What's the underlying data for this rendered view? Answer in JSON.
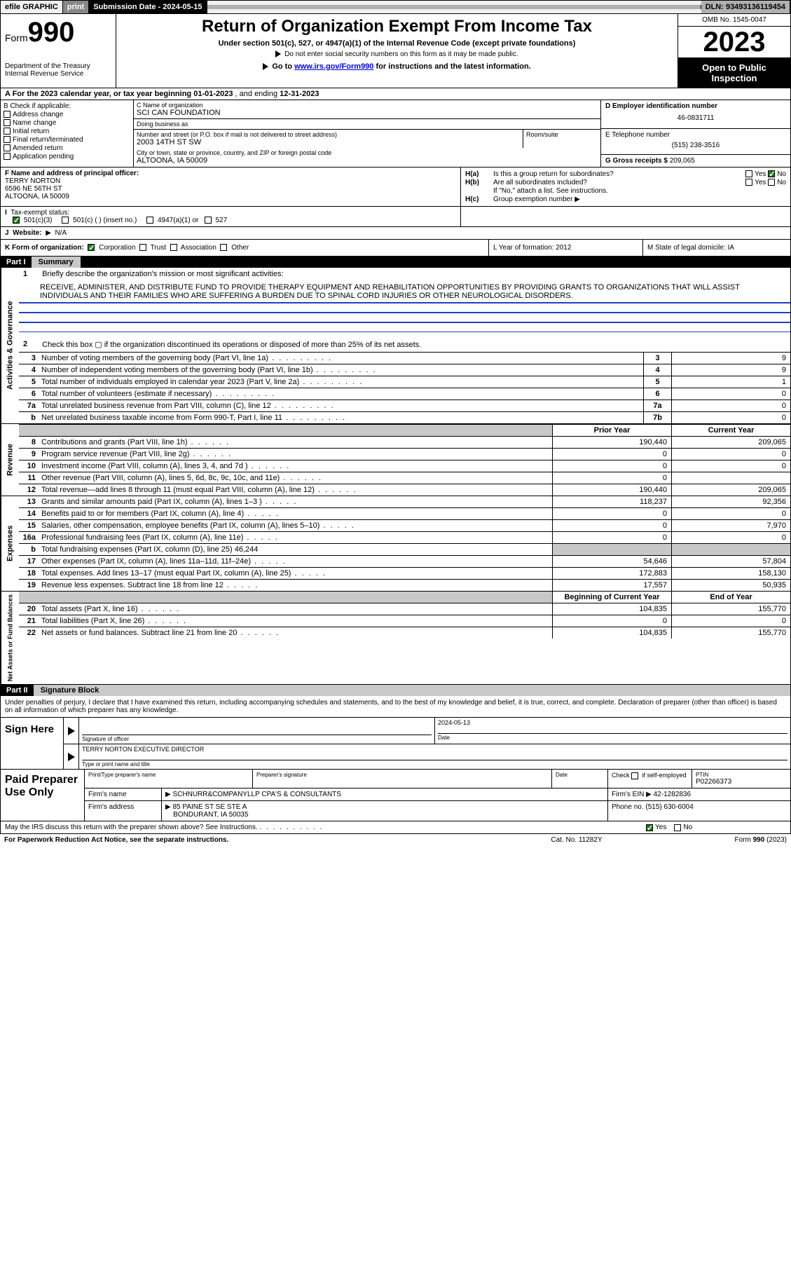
{
  "topbar": {
    "efile": "efile GRAPHIC",
    "print": "print",
    "subdate_label": "Submission Date - 2024-05-15",
    "dln": "DLN: 93493136119454"
  },
  "header": {
    "form_prefix": "Form",
    "form_num": "990",
    "dept": "Department of the Treasury\nInternal Revenue Service",
    "title": "Return of Organization Exempt From Income Tax",
    "sub": "Under section 501(c), 527, or 4947(a)(1) of the Internal Revenue Code (except private foundations)",
    "ssn": "Do not enter social security numbers on this form as it may be made public.",
    "goto_pre": "Go to ",
    "goto_link": "www.irs.gov/Form990",
    "goto_post": " for instructions and the latest information.",
    "omb": "OMB No. 1545-0047",
    "year": "2023",
    "open": "Open to Public Inspection"
  },
  "line_a": {
    "pre": "A For the 2023 calendar year, or tax year beginning ",
    "begin": "01-01-2023",
    "mid": " , and ending ",
    "end": "12-31-2023"
  },
  "box_b": {
    "title": "B Check if applicable:",
    "items": [
      "Address change",
      "Name change",
      "Initial return",
      "Final return/terminated",
      "Amended return",
      "Application pending"
    ]
  },
  "box_c": {
    "name_lbl": "C Name of organization",
    "name": "SCI CAN FOUNDATION",
    "dba_lbl": "Doing business as",
    "dba": "",
    "addr_lbl": "Number and street (or P.O. box if mail is not delivered to street address)",
    "room_lbl": "Room/suite",
    "addr": "2003 14TH ST SW",
    "city_lbl": "City or town, state or province, country, and ZIP or foreign postal code",
    "city": "ALTOONA, IA  50009"
  },
  "box_d": {
    "ein_lbl": "D Employer identification number",
    "ein": "46-0831711",
    "tel_lbl": "E Telephone number",
    "tel": "(515) 238-3516",
    "gross_lbl": "G Gross receipts $",
    "gross": "209,065"
  },
  "box_f": {
    "lbl": "F Name and address of principal officer:",
    "name": "TERRY NORTON",
    "street": "6596 NE 56TH ST",
    "city": "ALTOONA, IA  50009"
  },
  "box_h": {
    "ha_lbl": "H(a)",
    "ha_txt": "Is this a group return for subordinates?",
    "ha_yes": "Yes",
    "ha_no": "No",
    "hb_lbl": "H(b)",
    "hb_txt": "Are all subordinates included?",
    "hb_yes": "Yes",
    "hb_no": "No",
    "hb_note": "If \"No,\" attach a list. See instructions.",
    "hc_lbl": "H(c)",
    "hc_txt": "Group exemption number",
    "hc_arrow": "▶"
  },
  "line_i": {
    "lbl": "I",
    "txt": "Tax-exempt status:",
    "o1": "501(c)(3)",
    "o2": "501(c) (   ) (insert no.)",
    "o3": "4947(a)(1) or",
    "o4": "527"
  },
  "line_j": {
    "lbl": "J",
    "txt": "Website:",
    "val": "N/A",
    "arrow": "▶"
  },
  "line_k": {
    "lbl": "K Form of organization:",
    "o1": "Corporation",
    "o2": "Trust",
    "o3": "Association",
    "o4": "Other"
  },
  "line_l": {
    "txt": "L Year of formation: 2012"
  },
  "line_m": {
    "txt": "M State of legal domicile: IA"
  },
  "part1": {
    "label": "Part I",
    "title": "Summary"
  },
  "gov": {
    "vlabel": "Activities & Governance",
    "l1_lbl": "1",
    "l1_txt": "Briefly describe the organization's mission or most significant activities:",
    "l1_body": "RECEIVE, ADMINISTER, AND DISTRIBUTE FUND TO PROVIDE THERAPY EQUIPMENT AND REHABILITATION OPPORTUNITIES BY PROVIDING GRANTS TO ORGANIZATIONS THAT WILL ASSIST INDIVIDUALS AND THEIR FAMILIES WHO ARE SUFFERING A BURDEN DUE TO SPINAL CORD INJURIES OR OTHER NEUROLOGICAL DISORDERS.",
    "l2_lbl": "2",
    "l2_txt": "Check this box ▢ if the organization discontinued its operations or disposed of more than 25% of its net assets.",
    "rows": [
      {
        "n": "3",
        "t": "Number of voting members of the governing body (Part VI, line 1a)",
        "c": "3",
        "v": "9"
      },
      {
        "n": "4",
        "t": "Number of independent voting members of the governing body (Part VI, line 1b)",
        "c": "4",
        "v": "9"
      },
      {
        "n": "5",
        "t": "Total number of individuals employed in calendar year 2023 (Part V, line 2a)",
        "c": "5",
        "v": "1"
      },
      {
        "n": "6",
        "t": "Total number of volunteers (estimate if necessary)",
        "c": "6",
        "v": "0"
      },
      {
        "n": "7a",
        "t": "Total unrelated business revenue from Part VIII, column (C), line 12",
        "c": "7a",
        "v": "0"
      },
      {
        "n": "b",
        "t": "Net unrelated business taxable income from Form 990-T, Part I, line 11",
        "c": "7b",
        "v": "0"
      }
    ]
  },
  "rev": {
    "vlabel": "Revenue",
    "hdr_prior": "Prior Year",
    "hdr_curr": "Current Year",
    "rows": [
      {
        "n": "8",
        "t": "Contributions and grants (Part VIII, line 1h)",
        "p": "190,440",
        "c": "209,065"
      },
      {
        "n": "9",
        "t": "Program service revenue (Part VIII, line 2g)",
        "p": "0",
        "c": "0"
      },
      {
        "n": "10",
        "t": "Investment income (Part VIII, column (A), lines 3, 4, and 7d )",
        "p": "0",
        "c": "0"
      },
      {
        "n": "11",
        "t": "Other revenue (Part VIII, column (A), lines 5, 6d, 8c, 9c, 10c, and 11e)",
        "p": "0",
        "c": ""
      },
      {
        "n": "12",
        "t": "Total revenue—add lines 8 through 11 (must equal Part VIII, column (A), line 12)",
        "p": "190,440",
        "c": "209,065"
      }
    ]
  },
  "exp": {
    "vlabel": "Expenses",
    "rows": [
      {
        "n": "13",
        "t": "Grants and similar amounts paid (Part IX, column (A), lines 1–3 )",
        "p": "118,237",
        "c": "92,356"
      },
      {
        "n": "14",
        "t": "Benefits paid to or for members (Part IX, column (A), line 4)",
        "p": "0",
        "c": "0"
      },
      {
        "n": "15",
        "t": "Salaries, other compensation, employee benefits (Part IX, column (A), lines 5–10)",
        "p": "0",
        "c": "7,970"
      },
      {
        "n": "16a",
        "t": "Professional fundraising fees (Part IX, column (A), line 11e)",
        "p": "0",
        "c": "0"
      },
      {
        "n": "b",
        "t": "Total fundraising expenses (Part IX, column (D), line 25) 46,244",
        "p": "",
        "c": "",
        "gray": true
      },
      {
        "n": "17",
        "t": "Other expenses (Part IX, column (A), lines 11a–11d, 11f–24e)",
        "p": "54,646",
        "c": "57,804"
      },
      {
        "n": "18",
        "t": "Total expenses. Add lines 13–17 (must equal Part IX, column (A), line 25)",
        "p": "172,883",
        "c": "158,130"
      },
      {
        "n": "19",
        "t": "Revenue less expenses. Subtract line 18 from line 12",
        "p": "17,557",
        "c": "50,935"
      }
    ]
  },
  "net": {
    "vlabel": "Net Assets or Fund Balances",
    "hdr_begin": "Beginning of Current Year",
    "hdr_end": "End of Year",
    "rows": [
      {
        "n": "20",
        "t": "Total assets (Part X, line 16)",
        "p": "104,835",
        "c": "155,770"
      },
      {
        "n": "21",
        "t": "Total liabilities (Part X, line 26)",
        "p": "0",
        "c": "0"
      },
      {
        "n": "22",
        "t": "Net assets or fund balances. Subtract line 21 from line 20",
        "p": "104,835",
        "c": "155,770"
      }
    ]
  },
  "part2": {
    "label": "Part II",
    "title": "Signature Block"
  },
  "sig": {
    "decl": "Under penalties of perjury, I declare that I have examined this return, including accompanying schedules and statements, and to the best of my knowledge and belief, it is true, correct, and complete. Declaration of preparer (other than officer) is based on all information of which preparer has any knowledge.",
    "here": "Sign Here",
    "sig_lbl": "Signature of officer",
    "date_lbl": "Date",
    "date_val": "2024-05-13",
    "name": "TERRY NORTON  EXECUTIVE DIRECTOR",
    "name_lbl": "Type or print name and title"
  },
  "prep": {
    "left": "Paid Preparer Use Only",
    "h1": "Print/Type preparer's name",
    "h2": "Preparer's signature",
    "h3": "Date",
    "h4_a": "Check",
    "h4_b": "if self-employed",
    "h5": "PTIN",
    "ptin": "P02266373",
    "firm_lbl": "Firm's name",
    "firm": "SCHNURR&COMPANYLLP CPA'S & CONSULTANTS",
    "ein_lbl": "Firm's EIN",
    "ein": "42-1282836",
    "addr_lbl": "Firm's address",
    "addr1": "85 PAINE ST SE STE A",
    "addr2": "BONDURANT, IA  50035",
    "phone_lbl": "Phone no.",
    "phone": "(515) 630-6004",
    "arrow": "▶"
  },
  "discuss": {
    "txt": "May the IRS discuss this return with the preparer shown above? See Instructions.",
    "yes": "Yes",
    "no": "No"
  },
  "footer": {
    "pra": "For Paperwork Reduction Act Notice, see the separate instructions.",
    "cat": "Cat. No. 11282Y",
    "form": "Form 990 (2023)"
  }
}
